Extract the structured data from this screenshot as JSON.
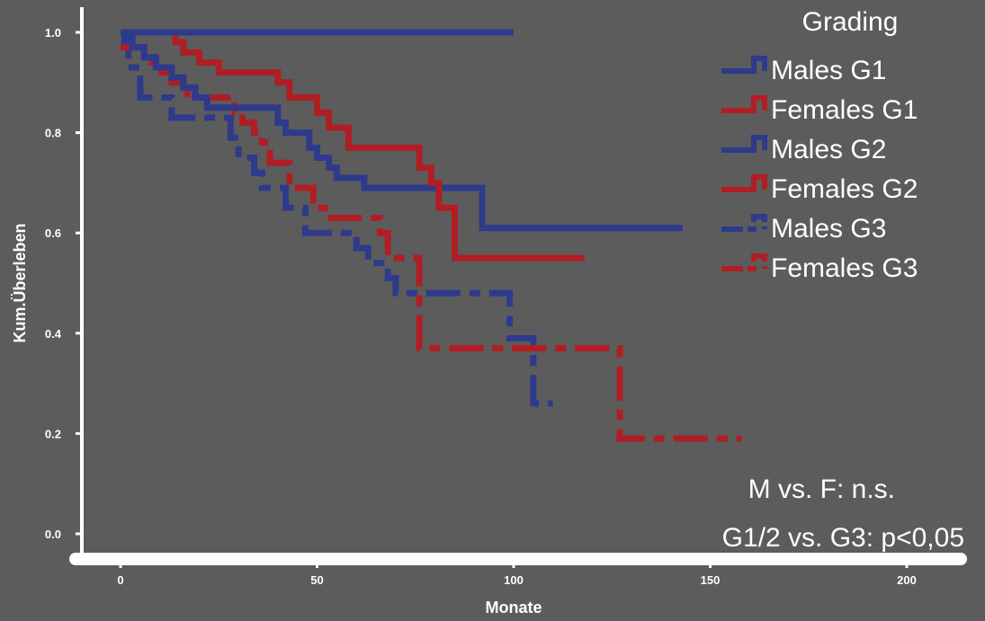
{
  "chart_data": {
    "type": "line",
    "step": "post",
    "ylabel": "Kum.Überleben",
    "xlabel": "Monate",
    "xlim": [
      0,
      200
    ],
    "ylim": [
      0.0,
      1.0
    ],
    "x_ticks": [
      0,
      50,
      100,
      150,
      200
    ],
    "y_ticks": [
      0.0,
      0.2,
      0.4,
      0.6,
      0.8,
      1.0
    ],
    "x_tick_labels": [
      "0",
      "50",
      "100",
      "150",
      "200"
    ],
    "y_tick_labels": [
      "0.0",
      "0.2",
      "0.4",
      "0.6",
      "0.8",
      "1.0"
    ],
    "legend": {
      "title": "Grading",
      "placement": "top-right",
      "entries": [
        "Males G1",
        "Females G1",
        "Males G2",
        "Females G2",
        "Males G3",
        "Females G3"
      ]
    },
    "annotations": [
      "M vs. F: n.s.",
      "G1/2 vs. G3: p<0,05"
    ],
    "colors": {
      "male": "#2e3a8c",
      "female": "#b01e24",
      "axis": "#ffffff",
      "background": "#5c5c5c"
    },
    "series": [
      {
        "name": "Males G1",
        "color": "#2e3a8c",
        "dash": "solid",
        "x": [
          0,
          100
        ],
        "y": [
          1.0,
          1.0
        ]
      },
      {
        "name": "Females G1",
        "color": "#b01e24",
        "dash": "solid",
        "x": [
          0,
          63
        ],
        "y": [
          1.0,
          1.0
        ]
      },
      {
        "name": "Males G2",
        "color": "#2e3a8c",
        "dash": "solid",
        "x": [
          0,
          1,
          3,
          6,
          9,
          13,
          16,
          19,
          22,
          28,
          32,
          40,
          42,
          45,
          48,
          50,
          53,
          55,
          62,
          75,
          92,
          143
        ],
        "y": [
          1.0,
          0.99,
          0.97,
          0.95,
          0.93,
          0.91,
          0.89,
          0.87,
          0.85,
          0.85,
          0.85,
          0.82,
          0.8,
          0.8,
          0.77,
          0.75,
          0.73,
          0.71,
          0.69,
          0.69,
          0.61,
          0.61
        ]
      },
      {
        "name": "Females G2",
        "color": "#b01e24",
        "dash": "solid",
        "x": [
          0,
          14,
          16,
          20,
          25,
          32,
          40,
          43,
          50,
          53,
          58,
          63,
          76,
          79,
          81,
          85,
          118
        ],
        "y": [
          1.0,
          0.98,
          0.96,
          0.94,
          0.92,
          0.92,
          0.9,
          0.87,
          0.84,
          0.81,
          0.77,
          0.77,
          0.73,
          0.7,
          0.65,
          0.55,
          0.55
        ]
      },
      {
        "name": "Males G3",
        "color": "#2e3a8c",
        "dash": "dashed",
        "x": [
          0,
          1,
          2,
          5,
          13,
          17,
          25,
          28,
          30,
          34,
          36,
          40,
          42,
          47,
          55,
          60,
          63,
          68,
          70,
          75,
          99,
          101,
          105,
          110
        ],
        "y": [
          1.0,
          0.98,
          0.93,
          0.87,
          0.83,
          0.83,
          0.83,
          0.79,
          0.75,
          0.72,
          0.69,
          0.69,
          0.65,
          0.6,
          0.6,
          0.57,
          0.54,
          0.51,
          0.48,
          0.48,
          0.39,
          0.39,
          0.26,
          0.26
        ]
      },
      {
        "name": "Females G3",
        "color": "#b01e24",
        "dash": "dashed",
        "x": [
          0,
          3,
          6,
          9,
          13,
          17,
          23,
          26,
          29,
          31,
          34,
          36,
          38,
          43,
          45,
          49,
          52,
          60,
          66,
          68,
          73,
          76,
          95,
          127,
          158
        ],
        "y": [
          0.97,
          0.97,
          0.94,
          0.92,
          0.9,
          0.87,
          0.87,
          0.87,
          0.84,
          0.82,
          0.8,
          0.78,
          0.74,
          0.69,
          0.69,
          0.65,
          0.63,
          0.63,
          0.6,
          0.55,
          0.55,
          0.37,
          0.37,
          0.19,
          0.19
        ]
      }
    ]
  }
}
